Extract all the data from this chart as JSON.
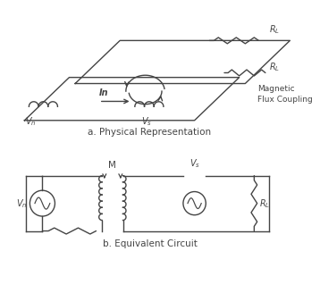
{
  "bg_color": "#ffffff",
  "line_color": "#444444",
  "figsize": [
    3.58,
    3.28
  ],
  "dpi": 100,
  "title_a": "a. Physical Representation",
  "title_b": "b. Equivalent Circuit",
  "label_flux": "Magnetic\nFlux Coupling"
}
